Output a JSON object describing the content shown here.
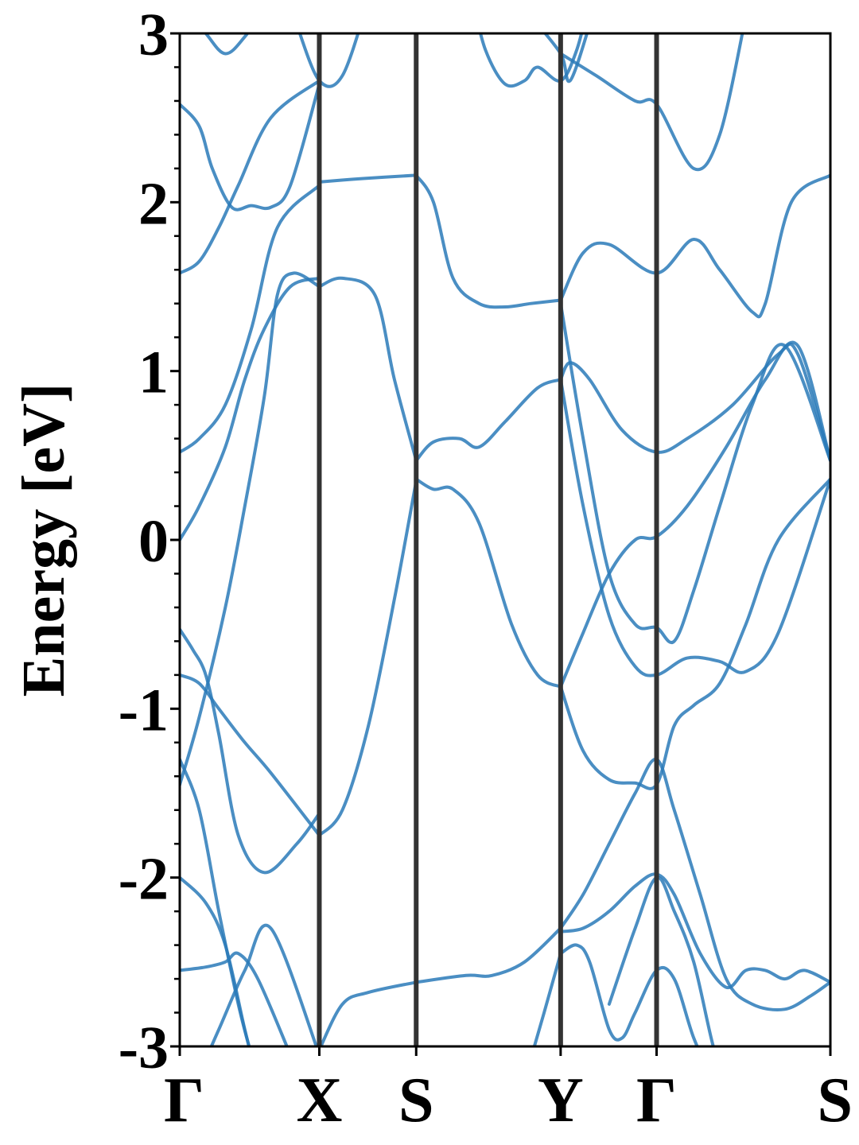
{
  "chart_data": {
    "type": "line",
    "title": "",
    "xlabel": "",
    "ylabel": "Energy [eV]",
    "ylim": [
      -3,
      3
    ],
    "yticks": [
      {
        "value": 3,
        "label": "3"
      },
      {
        "value": 2,
        "label": "2"
      },
      {
        "value": 1,
        "label": "1"
      },
      {
        "value": 0,
        "label": "0"
      },
      {
        "value": -1,
        "label": "-1"
      },
      {
        "value": -2,
        "label": "-2"
      },
      {
        "value": -3,
        "label": "-3"
      }
    ],
    "ytick_minor_step": 0.2,
    "xlim": [
      0,
      1
    ],
    "kpoints": [
      {
        "label": "Γ",
        "x": 0.0
      },
      {
        "label": "X",
        "x": 0.2145
      },
      {
        "label": "S",
        "x": 0.3634
      },
      {
        "label": "Y",
        "x": 0.5854
      },
      {
        "label": "Γ",
        "x": 0.7329
      },
      {
        "label": "S",
        "x": 1.0
      }
    ],
    "grid": false,
    "line_color": "#1f77b4",
    "band_color": "#2a7ab8",
    "kline_color": "#333333",
    "bands": [
      {
        "name": "",
        "points": [
          [
            0.0,
            -3.3
          ],
          [
            0.03,
            -3.15
          ],
          [
            0.06,
            -2.9
          ],
          [
            0.1,
            -2.55
          ],
          [
            0.14,
            -2.3
          ],
          [
            0.2145,
            -3.05
          ]
        ]
      },
      {
        "name": "",
        "points": [
          [
            0.0,
            -2.55
          ],
          [
            0.04,
            -2.53
          ],
          [
            0.07,
            -2.5
          ],
          [
            0.09,
            -2.45
          ],
          [
            0.12,
            -2.6
          ],
          [
            0.17,
            -3.05
          ]
        ]
      },
      {
        "name": "",
        "points": [
          [
            0.0,
            -2.0
          ],
          [
            0.04,
            -2.15
          ],
          [
            0.07,
            -2.4
          ],
          [
            0.1,
            -2.9
          ],
          [
            0.12,
            -3.2
          ]
        ]
      },
      {
        "name": "",
        "points": [
          [
            0.0,
            -1.3
          ],
          [
            0.03,
            -1.6
          ],
          [
            0.06,
            -2.2
          ],
          [
            0.09,
            -2.75
          ],
          [
            0.11,
            -3.05
          ]
        ]
      },
      {
        "name": "",
        "points": [
          [
            0.0,
            -0.53
          ],
          [
            0.02,
            -0.65
          ],
          [
            0.04,
            -0.8
          ],
          [
            0.06,
            -1.15
          ],
          [
            0.09,
            -1.75
          ],
          [
            0.13,
            -1.97
          ],
          [
            0.18,
            -1.8
          ],
          [
            0.2145,
            -1.62
          ]
        ]
      },
      {
        "name": "",
        "points": [
          [
            0.0,
            -0.8
          ],
          [
            0.03,
            -0.85
          ],
          [
            0.06,
            -1.0
          ],
          [
            0.1,
            -1.2
          ],
          [
            0.14,
            -1.38
          ],
          [
            0.2145,
            -1.75
          ]
        ]
      },
      {
        "name": "",
        "points": [
          [
            0.0,
            -1.45
          ],
          [
            0.03,
            -1.05
          ],
          [
            0.07,
            -0.4
          ],
          [
            0.1,
            0.2
          ],
          [
            0.13,
            0.85
          ],
          [
            0.15,
            1.45
          ],
          [
            0.175,
            1.58
          ],
          [
            0.2145,
            1.5
          ]
        ]
      },
      {
        "name": "",
        "points": [
          [
            0.0,
            0.0
          ],
          [
            0.03,
            0.2
          ],
          [
            0.07,
            0.55
          ],
          [
            0.1,
            0.95
          ],
          [
            0.13,
            1.25
          ],
          [
            0.17,
            1.5
          ],
          [
            0.2145,
            1.55
          ]
        ]
      },
      {
        "name": "",
        "points": [
          [
            0.0,
            0.52
          ],
          [
            0.03,
            0.6
          ],
          [
            0.07,
            0.8
          ],
          [
            0.11,
            1.25
          ],
          [
            0.15,
            1.85
          ],
          [
            0.2145,
            2.1
          ]
        ]
      },
      {
        "name": "",
        "points": [
          [
            0.0,
            1.58
          ],
          [
            0.03,
            1.65
          ],
          [
            0.06,
            1.85
          ],
          [
            0.09,
            2.1
          ],
          [
            0.14,
            2.5
          ],
          [
            0.2145,
            2.72
          ]
        ]
      },
      {
        "name": "",
        "points": [
          [
            0.0,
            2.58
          ],
          [
            0.03,
            2.45
          ],
          [
            0.05,
            2.2
          ],
          [
            0.08,
            1.97
          ],
          [
            0.11,
            1.98
          ],
          [
            0.14,
            1.97
          ],
          [
            0.17,
            2.1
          ],
          [
            0.2145,
            2.7
          ]
        ]
      },
      {
        "name": "",
        "points": [
          [
            0.0,
            3.2
          ],
          [
            0.04,
            3.0
          ],
          [
            0.07,
            2.88
          ],
          [
            0.1,
            2.98
          ],
          [
            0.13,
            3.15
          ]
        ]
      },
      {
        "name": "",
        "points": [
          [
            0.18,
            3.05
          ],
          [
            0.2145,
            2.72
          ],
          [
            0.25,
            2.75
          ],
          [
            0.29,
            3.2
          ]
        ]
      },
      {
        "name": "",
        "points": [
          [
            0.2145,
            2.12
          ],
          [
            0.28,
            2.14
          ],
          [
            0.3634,
            2.16
          ]
        ]
      },
      {
        "name": "",
        "points": [
          [
            0.2145,
            1.5
          ],
          [
            0.25,
            1.55
          ],
          [
            0.3,
            1.45
          ],
          [
            0.33,
            0.95
          ],
          [
            0.3634,
            0.47
          ]
        ]
      },
      {
        "name": "",
        "points": [
          [
            0.2145,
            -1.75
          ],
          [
            0.25,
            -1.6
          ],
          [
            0.29,
            -1.1
          ],
          [
            0.33,
            -0.35
          ],
          [
            0.3634,
            0.35
          ]
        ]
      },
      {
        "name": "",
        "points": [
          [
            0.2145,
            -3.02
          ],
          [
            0.25,
            -2.75
          ],
          [
            0.29,
            -2.68
          ],
          [
            0.3634,
            -2.62
          ]
        ]
      },
      {
        "name": "",
        "points": [
          [
            0.3634,
            2.16
          ],
          [
            0.39,
            2.0
          ],
          [
            0.42,
            1.55
          ],
          [
            0.46,
            1.4
          ],
          [
            0.5,
            1.38
          ],
          [
            0.54,
            1.4
          ],
          [
            0.5854,
            1.42
          ]
        ]
      },
      {
        "name": "",
        "points": [
          [
            0.3634,
            0.47
          ],
          [
            0.39,
            0.58
          ],
          [
            0.43,
            0.6
          ],
          [
            0.46,
            0.55
          ],
          [
            0.5,
            0.7
          ],
          [
            0.55,
            0.9
          ],
          [
            0.5854,
            0.95
          ]
        ]
      },
      {
        "name": "",
        "points": [
          [
            0.3634,
            0.36
          ],
          [
            0.39,
            0.3
          ],
          [
            0.42,
            0.3
          ],
          [
            0.46,
            0.1
          ],
          [
            0.51,
            -0.5
          ],
          [
            0.55,
            -0.8
          ],
          [
            0.5854,
            -0.87
          ]
        ]
      },
      {
        "name": "",
        "points": [
          [
            0.3634,
            -2.62
          ],
          [
            0.44,
            -2.58
          ],
          [
            0.48,
            -2.58
          ],
          [
            0.53,
            -2.5
          ],
          [
            0.5854,
            -2.3
          ]
        ]
      },
      {
        "name": "",
        "points": [
          [
            0.45,
            3.2
          ],
          [
            0.47,
            2.9
          ],
          [
            0.5,
            2.7
          ],
          [
            0.53,
            2.72
          ],
          [
            0.55,
            2.8
          ],
          [
            0.5854,
            2.72
          ],
          [
            0.61,
            2.9
          ],
          [
            0.63,
            3.2
          ]
        ]
      },
      {
        "name": "",
        "points": [
          [
            0.54,
            3.1
          ],
          [
            0.5854,
            2.88
          ],
          [
            0.6,
            2.72
          ],
          [
            0.63,
            3.05
          ]
        ]
      },
      {
        "name": "",
        "points": [
          [
            0.5854,
            2.88
          ],
          [
            0.64,
            2.75
          ],
          [
            0.7,
            2.6
          ],
          [
            0.7329,
            2.58
          ],
          [
            0.79,
            2.2
          ],
          [
            0.83,
            2.4
          ],
          [
            0.87,
            3.1
          ]
        ]
      },
      {
        "name": "",
        "points": [
          [
            0.5854,
            1.42
          ],
          [
            0.62,
            1.7
          ],
          [
            0.66,
            1.75
          ],
          [
            0.7329,
            1.58
          ],
          [
            0.79,
            1.78
          ],
          [
            0.83,
            1.6
          ],
          [
            0.88,
            1.35
          ],
          [
            0.9,
            1.4
          ],
          [
            0.94,
            2.0
          ],
          [
            1.0,
            2.16
          ]
        ]
      },
      {
        "name": "",
        "points": [
          [
            0.5854,
            0.95
          ],
          [
            0.6,
            1.05
          ],
          [
            0.63,
            0.95
          ],
          [
            0.68,
            0.65
          ],
          [
            0.7329,
            0.52
          ],
          [
            0.78,
            0.6
          ],
          [
            0.85,
            0.8
          ],
          [
            0.92,
            1.1
          ],
          [
            0.95,
            1.1
          ],
          [
            1.0,
            0.47
          ]
        ]
      },
      {
        "name": "",
        "points": [
          [
            0.5854,
            1.4
          ],
          [
            0.62,
            0.6
          ],
          [
            0.66,
            -0.2
          ],
          [
            0.7,
            -0.5
          ],
          [
            0.7329,
            -0.52
          ],
          [
            0.76,
            -0.6
          ],
          [
            0.79,
            -0.3
          ],
          [
            0.83,
            0.2
          ],
          [
            0.88,
            0.8
          ],
          [
            0.93,
            1.15
          ],
          [
            1.0,
            0.47
          ]
        ]
      },
      {
        "name": "",
        "points": [
          [
            0.5854,
            0.95
          ],
          [
            0.62,
            0.2
          ],
          [
            0.66,
            -0.45
          ],
          [
            0.7,
            -0.75
          ],
          [
            0.7329,
            -0.8
          ],
          [
            0.78,
            -0.7
          ],
          [
            0.83,
            -0.72
          ],
          [
            0.87,
            -0.78
          ],
          [
            0.92,
            -0.55
          ],
          [
            1.0,
            0.36
          ]
        ]
      },
      {
        "name": "",
        "points": [
          [
            0.5854,
            -0.87
          ],
          [
            0.62,
            -1.25
          ],
          [
            0.66,
            -1.42
          ],
          [
            0.7,
            -1.44
          ],
          [
            0.7329,
            -1.45
          ],
          [
            0.76,
            -1.1
          ],
          [
            0.79,
            -0.98
          ],
          [
            0.83,
            -0.85
          ],
          [
            0.87,
            -0.5
          ],
          [
            0.92,
            0.0
          ],
          [
            1.0,
            0.36
          ]
        ]
      },
      {
        "name": "",
        "points": [
          [
            0.5854,
            -0.87
          ],
          [
            0.62,
            -0.55
          ],
          [
            0.66,
            -0.2
          ],
          [
            0.7,
            0.0
          ],
          [
            0.7329,
            0.02
          ],
          [
            0.78,
            0.2
          ],
          [
            0.84,
            0.55
          ],
          [
            0.9,
            0.95
          ],
          [
            0.95,
            1.15
          ],
          [
            1.0,
            0.47
          ]
        ]
      },
      {
        "name": "",
        "points": [
          [
            0.5854,
            -2.32
          ],
          [
            0.62,
            -2.3
          ],
          [
            0.66,
            -2.2
          ],
          [
            0.7,
            -2.05
          ],
          [
            0.7329,
            -1.98
          ],
          [
            0.76,
            -2.1
          ],
          [
            0.8,
            -2.45
          ],
          [
            0.84,
            -2.65
          ],
          [
            0.87,
            -2.55
          ],
          [
            0.9,
            -2.55
          ],
          [
            0.93,
            -2.6
          ],
          [
            0.96,
            -2.55
          ],
          [
            1.0,
            -2.62
          ]
        ]
      },
      {
        "name": "",
        "points": [
          [
            0.5854,
            -2.3
          ],
          [
            0.62,
            -2.1
          ],
          [
            0.66,
            -1.8
          ],
          [
            0.7,
            -1.5
          ],
          [
            0.7329,
            -1.3
          ],
          [
            0.76,
            -1.6
          ],
          [
            0.8,
            -2.1
          ],
          [
            0.84,
            -2.6
          ],
          [
            0.88,
            -2.75
          ],
          [
            0.93,
            -2.78
          ],
          [
            0.97,
            -2.7
          ],
          [
            1.0,
            -2.62
          ]
        ]
      },
      {
        "name": "",
        "points": [
          [
            0.5854,
            -2.45
          ],
          [
            0.61,
            -2.4
          ],
          [
            0.63,
            -2.5
          ],
          [
            0.66,
            -2.9
          ],
          [
            0.68,
            -2.95
          ],
          [
            0.7,
            -2.8
          ],
          [
            0.7329,
            -2.55
          ],
          [
            0.76,
            -2.6
          ],
          [
            0.79,
            -2.95
          ],
          [
            0.82,
            -3.2
          ]
        ]
      },
      {
        "name": "",
        "points": [
          [
            0.53,
            -3.2
          ],
          [
            0.56,
            -2.8
          ],
          [
            0.5854,
            -2.45
          ]
        ]
      },
      {
        "name": "",
        "points": [
          [
            0.66,
            -2.75
          ],
          [
            0.7,
            -2.3
          ],
          [
            0.7329,
            -2.0
          ],
          [
            0.76,
            -2.2
          ],
          [
            0.79,
            -2.5
          ],
          [
            0.82,
            -3.0
          ],
          [
            0.84,
            -3.2
          ]
        ]
      }
    ]
  }
}
